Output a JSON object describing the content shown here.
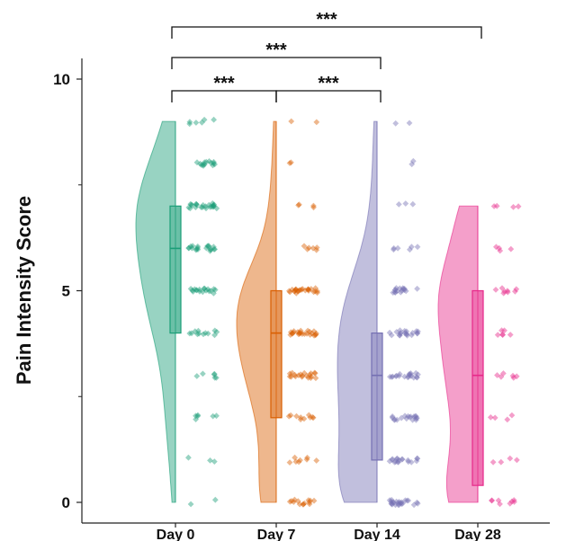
{
  "chart_data": {
    "type": "raincloud",
    "ylabel": "Pain Intensity Score",
    "xlabel": "",
    "ylim": [
      0,
      10
    ],
    "yticks": [
      0,
      5,
      10
    ],
    "yticks_minor": [
      2.5,
      7.5
    ],
    "grid": false,
    "categories": [
      "Day 0",
      "Day 7",
      "Day 14",
      "Day 28"
    ],
    "colors": [
      "#1b9e77",
      "#d95f02",
      "#7570b3",
      "#e7298a"
    ],
    "boxplots": [
      {
        "category": "Day 0",
        "q1": 4,
        "median": 6,
        "q3": 7
      },
      {
        "category": "Day 7",
        "q1": 2,
        "median": 4,
        "q3": 5
      },
      {
        "category": "Day 14",
        "q1": 1,
        "median": 3,
        "q3": 4
      },
      {
        "category": "Day 28",
        "q1": 0.4,
        "median": 3,
        "q3": 5
      }
    ],
    "violin_range": [
      {
        "category": "Day 0",
        "min": 0,
        "max": 9
      },
      {
        "category": "Day 7",
        "min": 0,
        "max": 9
      },
      {
        "category": "Day 14",
        "min": 0,
        "max": 9
      },
      {
        "category": "Day 28",
        "min": 0,
        "max": 7
      }
    ],
    "score_counts": [
      {
        "category": "Day 0",
        "counts": {
          "0": 2,
          "1": 3,
          "2": 6,
          "3": 6,
          "4": 12,
          "5": 18,
          "6": 20,
          "7": 24,
          "8": 14,
          "9": 6
        }
      },
      {
        "category": "Day 7",
        "counts": {
          "0": 14,
          "1": 8,
          "2": 10,
          "3": 20,
          "4": 24,
          "5": 26,
          "6": 6,
          "7": 4,
          "8": 2,
          "9": 2
        }
      },
      {
        "category": "Day 14",
        "counts": {
          "0": 24,
          "1": 18,
          "2": 18,
          "3": 20,
          "4": 20,
          "5": 16,
          "6": 6,
          "7": 3,
          "8": 2,
          "9": 2
        }
      },
      {
        "category": "Day 28",
        "counts": {
          "0": 8,
          "1": 4,
          "2": 4,
          "3": 6,
          "4": 6,
          "5": 8,
          "6": 4,
          "7": 4
        }
      }
    ],
    "significance": [
      {
        "from": "Day 0",
        "to": "Day 7",
        "label": "***"
      },
      {
        "from": "Day 7",
        "to": "Day 14",
        "label": "***"
      },
      {
        "from": "Day 0",
        "to": "Day 14",
        "label": "***"
      },
      {
        "from": "Day 0",
        "to": "Day 28",
        "label": "***"
      }
    ]
  }
}
